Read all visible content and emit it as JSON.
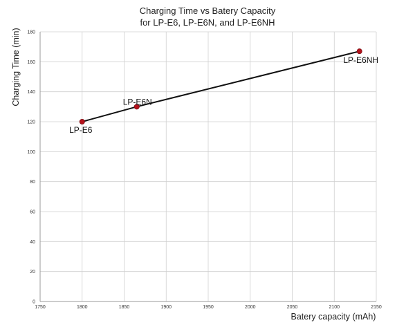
{
  "chart_data": {
    "type": "line",
    "title": "Charging Time vs Batery Capacity",
    "subtitle": "for LP-E6, LP-E6N, and LP-E6NH",
    "xlabel": "Batery capacity (mAh)",
    "ylabel": "Charging Time (min)",
    "xlim": [
      1750,
      2150
    ],
    "ylim": [
      0,
      180
    ],
    "xticks": [
      1750,
      1800,
      1850,
      1900,
      1950,
      2000,
      2050,
      2100,
      2150
    ],
    "yticks": [
      0,
      20,
      40,
      60,
      80,
      100,
      120,
      140,
      160,
      180
    ],
    "grid": true,
    "colors": {
      "line": "#111111",
      "marker": "#b5121b"
    },
    "series": [
      {
        "points": [
          {
            "x": 1800,
            "y": 120,
            "label": "LP-E6"
          },
          {
            "x": 1865,
            "y": 130,
            "label": "LP-E6N"
          },
          {
            "x": 2130,
            "y": 167,
            "label": "LP-E6NH"
          }
        ]
      }
    ]
  }
}
